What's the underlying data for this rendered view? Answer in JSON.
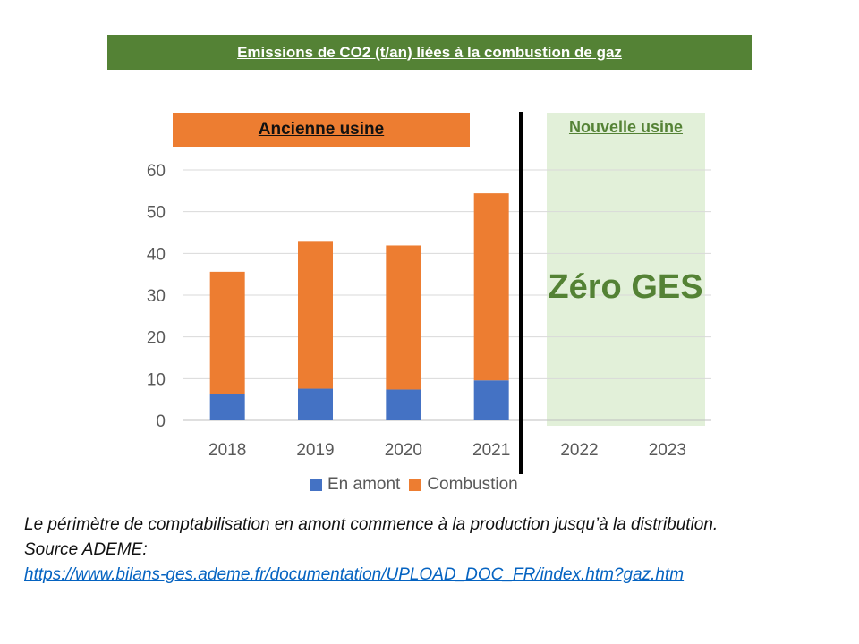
{
  "title": "Emissions de CO2 (t/an) liées à la combustion de gaz",
  "banners": {
    "old_plant": "Ancienne usine",
    "new_plant": "Nouvelle usine",
    "new_plant_value": "Zéro GES"
  },
  "colors": {
    "title_bg": "#548235",
    "upstream": "#4472c4",
    "combustion": "#ed7d31",
    "new_plant_bg": "#e2f0d9",
    "new_plant_text": "#548235"
  },
  "chart_data": {
    "type": "bar",
    "stacked": true,
    "title": "Emissions de CO2 (t/an) liées à la combustion de gaz",
    "categories": [
      "2018",
      "2019",
      "2020",
      "2021",
      "2022",
      "2023"
    ],
    "series": [
      {
        "name": "En amont",
        "values": [
          6.3,
          7.6,
          7.4,
          9.6,
          0,
          0
        ]
      },
      {
        "name": "Combustion",
        "values": [
          29.3,
          35.4,
          34.5,
          44.8,
          0,
          0
        ]
      }
    ],
    "yticks": [
      0,
      10,
      20,
      30,
      40,
      50,
      60
    ],
    "ylim": [
      0,
      60
    ],
    "xlabel": "",
    "ylabel": "",
    "grid": true,
    "legend": "bottom"
  },
  "legend": {
    "upstream_label": "En amont",
    "combustion_label": "Combustion"
  },
  "note": {
    "line1": "Le périmètre de comptabilisation en amont commence à la production jusqu’à la distribution.",
    "line2": "Source ADEME:",
    "link": "https://www.bilans-ges.ademe.fr/documentation/UPLOAD_DOC_FR/index.htm?gaz.htm"
  }
}
